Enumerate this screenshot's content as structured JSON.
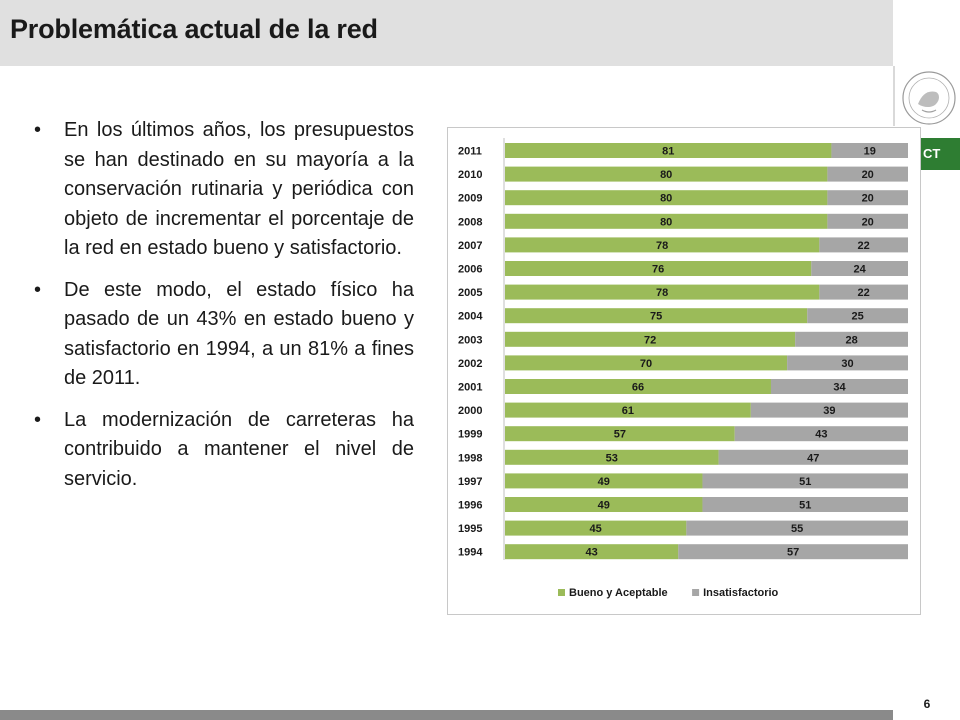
{
  "slide": {
    "title": "Problemática actual de la red",
    "page_number": "6",
    "logo_text": "CT",
    "bullets": [
      "En los últimos años, los presupuestos se han destinado en su mayoría a la conservación rutinaria y periódica con objeto de incrementar el porcentaje de la red en estado bueno y satisfactorio.",
      "De este modo, el estado físico ha pasado de un 43% en estado bueno y satisfactorio en 1994, a un 81% a fines de 2011.",
      "La modernización de carreteras ha contribuido a mantener el nivel de servicio."
    ]
  },
  "chart_data": {
    "type": "bar",
    "orientation": "horizontal",
    "stacked": true,
    "categories": [
      "2011",
      "2010",
      "2009",
      "2008",
      "2007",
      "2006",
      "2005",
      "2004",
      "2003",
      "2002",
      "2001",
      "2000",
      "1999",
      "1998",
      "1997",
      "1996",
      "1995",
      "1994"
    ],
    "series": [
      {
        "name": "Bueno y Aceptable",
        "color": "#9bbb59",
        "values": [
          81,
          80,
          80,
          80,
          78,
          76,
          78,
          75,
          72,
          70,
          66,
          61,
          57,
          53,
          49,
          49,
          45,
          43
        ]
      },
      {
        "name": "Insatisfactorio",
        "color": "#a6a6a6",
        "values": [
          19,
          20,
          20,
          20,
          22,
          24,
          22,
          25,
          28,
          30,
          34,
          39,
          43,
          47,
          51,
          51,
          55,
          57
        ]
      }
    ],
    "xlim": [
      0,
      100
    ],
    "legend_position": "bottom",
    "grid": false,
    "data_labels": true
  }
}
